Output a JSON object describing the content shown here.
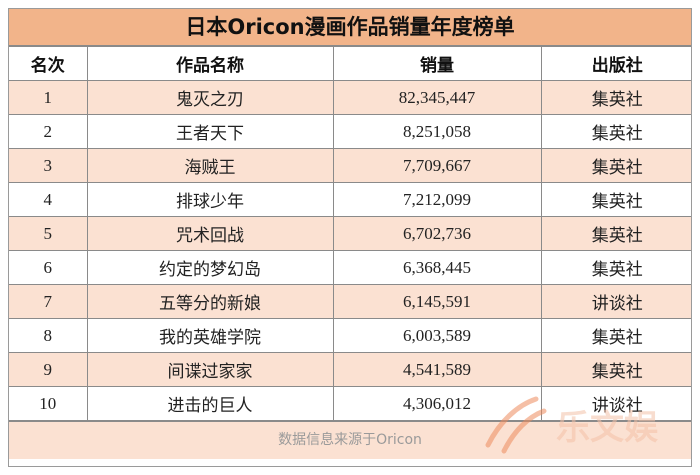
{
  "title": "日本Oricon漫画作品销量年度榜单",
  "columns": [
    "名次",
    "作品名称",
    "销量",
    "出版社"
  ],
  "rows": [
    {
      "rank": "1",
      "name": "鬼灭之刃",
      "sales": "82,345,447",
      "publisher": "集英社"
    },
    {
      "rank": "2",
      "name": "王者天下",
      "sales": "8,251,058",
      "publisher": "集英社"
    },
    {
      "rank": "3",
      "name": "海贼王",
      "sales": "7,709,667",
      "publisher": "集英社"
    },
    {
      "rank": "4",
      "name": "排球少年",
      "sales": "7,212,099",
      "publisher": "集英社"
    },
    {
      "rank": "5",
      "name": "咒术回战",
      "sales": "6,702,736",
      "publisher": "集英社"
    },
    {
      "rank": "6",
      "name": "约定的梦幻岛",
      "sales": "6,368,445",
      "publisher": "集英社"
    },
    {
      "rank": "7",
      "name": "五等分的新娘",
      "sales": "6,145,591",
      "publisher": "讲谈社"
    },
    {
      "rank": "8",
      "name": "我的英雄学院",
      "sales": "6,003,589",
      "publisher": "集英社"
    },
    {
      "rank": "9",
      "name": "间谍过家家",
      "sales": "4,541,589",
      "publisher": "集英社"
    },
    {
      "rank": "10",
      "name": "进击的巨人",
      "sales": "4,306,012",
      "publisher": "讲谈社"
    }
  ],
  "footer": "数据信息来源于Oricon",
  "watermark": "乐文娱",
  "colors": {
    "header_band": "#f2b48a",
    "row_alt": "#fbe1d2",
    "watermark": "#ee8c5e"
  }
}
